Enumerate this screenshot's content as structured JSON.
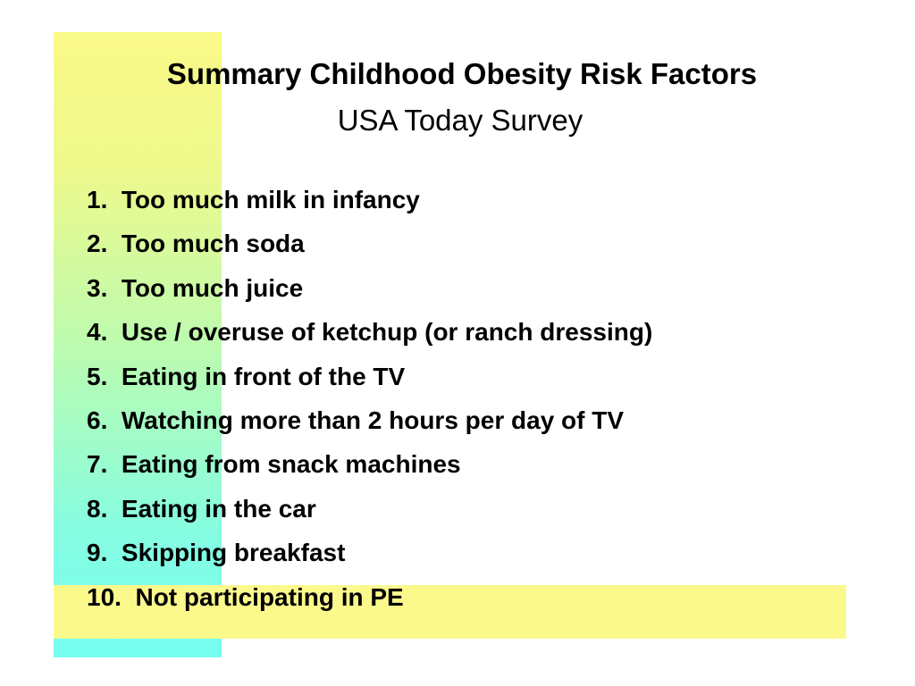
{
  "slide": {
    "title": "Summary Childhood Obesity Risk Factors",
    "subtitle": "USA Today Survey",
    "items": [
      "1.  Too much milk in infancy",
      "2.  Too much soda",
      "3.  Too much juice",
      "4.  Use / overuse of ketchup (or ranch dressing)",
      "5.  Eating in front of the TV",
      "6.  Watching more than 2 hours per day of TV",
      "7.  Eating from snack machines",
      "8.  Eating in the car",
      "9.  Skipping breakfast",
      "10.  Not participating in PE"
    ]
  },
  "colors": {
    "gradient_top": "#f9f987",
    "gradient_bottom": "#75fef0",
    "band": "#fbf98c",
    "text": "#000000"
  }
}
